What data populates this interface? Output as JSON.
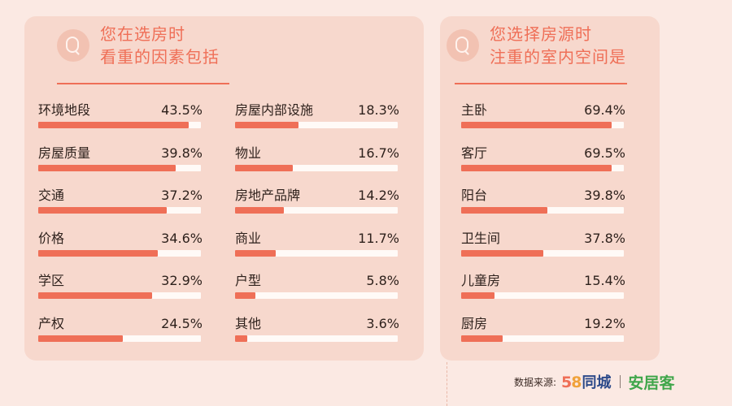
{
  "left_panel": {
    "title_line1": "您在选房时",
    "title_line2": "看重的因素包括"
  },
  "right_panel": {
    "title_line1": "您选择房源时",
    "title_line2": "注重的室内空间是"
  },
  "footer": {
    "source_label": "数据来源:",
    "logo_58": "58",
    "logo_58_text": "同城",
    "logo_anjuke": "安居客"
  },
  "colors": {
    "accent": "#ef6f57",
    "track": "#fffaf7",
    "panel": "#f7d8cd",
    "background": "#fbe9e3"
  },
  "chart_data": [
    {
      "type": "bar",
      "title": "您在选房时看重的因素包括",
      "categories": [
        "环境地段",
        "房屋质量",
        "交通",
        "价格",
        "学区",
        "产权",
        "房屋内部设施",
        "物业",
        "房地产品牌",
        "商业",
        "户型",
        "其他"
      ],
      "value_labels": [
        "43.5%",
        "39.8%",
        "37.2%",
        "34.6%",
        "32.9%",
        "24.5%",
        "18.3%",
        "16.7%",
        "14.2%",
        "11.7%",
        "5.8%",
        "3.6%"
      ],
      "values": [
        43.5,
        39.8,
        37.2,
        34.6,
        32.9,
        24.5,
        18.3,
        16.7,
        14.2,
        11.7,
        5.8,
        3.6
      ],
      "xlim": [
        0,
        47
      ]
    },
    {
      "type": "bar",
      "title": "您选择房源时注重的室内空间是",
      "categories": [
        "主卧",
        "客厅",
        "阳台",
        "卫生间",
        "儿童房",
        "厨房"
      ],
      "value_labels": [
        "69.4%",
        "69.5%",
        "39.8%",
        "37.8%",
        "15.4%",
        "19.2%"
      ],
      "values": [
        69.4,
        69.5,
        39.8,
        37.8,
        15.4,
        19.2
      ],
      "xlim": [
        0,
        75
      ]
    }
  ]
}
